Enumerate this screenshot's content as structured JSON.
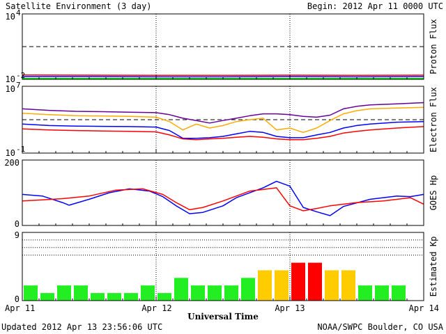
{
  "header": {
    "title": "Satellite Environment (3 day)",
    "begin": "Begin:  2012 Apr 11 0000 UTC"
  },
  "footer": {
    "updated": "Updated 2012 Apr 13 23:56:06 UTC",
    "source": "NOAA/SWPC Boulder, CO USA"
  },
  "xaxis": {
    "title": "Universal Time",
    "ticks": [
      "Apr 11",
      "Apr 12",
      "Apr 13",
      "Apr 14"
    ],
    "range_days": [
      0,
      3
    ]
  },
  "chart_data": [
    {
      "type": "line",
      "ylabel": "Proton Flux",
      "yscale": "log",
      "ylim": [
        0.01,
        10000
      ],
      "ytick_labels": [
        {
          "base": "10",
          "exp": "4"
        },
        {
          "base": "10",
          "exp": "-2"
        }
      ],
      "reference_line": 10,
      "series": [
        {
          "color": "#ff0000",
          "x": [
            0,
            0.5,
            1,
            1.5,
            2,
            2.5,
            3
          ],
          "y": [
            0.025,
            0.024,
            0.023,
            0.023,
            0.024,
            0.023,
            0.024
          ]
        },
        {
          "color": "#0000ff",
          "x": [
            0,
            0.5,
            1,
            1.5,
            2,
            2.5,
            3
          ],
          "y": [
            0.018,
            0.018,
            0.017,
            0.017,
            0.018,
            0.017,
            0.018
          ]
        },
        {
          "color": "#00dd00",
          "x": [
            0,
            0.5,
            1,
            1.5,
            2,
            2.5,
            3
          ],
          "y": [
            0.012,
            0.012,
            0.012,
            0.012,
            0.012,
            0.012,
            0.012
          ]
        }
      ]
    },
    {
      "type": "line",
      "ylabel": "Electron Flux",
      "yscale": "log",
      "ylim": [
        0.1,
        10000000
      ],
      "ytick_labels": [
        {
          "base": "10",
          "exp": "7"
        },
        {
          "base": "10",
          "exp": "-1"
        }
      ],
      "reference_line": 1000,
      "series": [
        {
          "color": "#660099",
          "x": [
            0,
            0.2,
            0.4,
            0.6,
            0.8,
            1.0,
            1.1,
            1.2,
            1.3,
            1.4,
            1.5,
            1.6,
            1.7,
            1.8,
            1.9,
            2.0,
            2.1,
            2.2,
            2.3,
            2.4,
            2.5,
            2.6,
            2.8,
            3.0
          ],
          "y": [
            20000,
            13000,
            10000,
            9000,
            8000,
            7000,
            4000,
            1500,
            800,
            400,
            800,
            1500,
            3000,
            5000,
            5000,
            4000,
            2500,
            2000,
            3500,
            20000,
            40000,
            60000,
            80000,
            110000
          ]
        },
        {
          "color": "#ffaa00",
          "x": [
            0,
            0.2,
            0.4,
            0.6,
            0.8,
            1.0,
            1.1,
            1.2,
            1.3,
            1.4,
            1.5,
            1.6,
            1.7,
            1.8,
            1.9,
            2.0,
            2.1,
            2.2,
            2.3,
            2.4,
            2.5,
            2.6,
            2.8,
            3.0
          ],
          "y": [
            6000,
            4000,
            3000,
            2800,
            2500,
            2000,
            600,
            60,
            300,
            100,
            200,
            600,
            1000,
            1500,
            60,
            100,
            30,
            100,
            800,
            5000,
            12000,
            20000,
            25000,
            30000
          ]
        },
        {
          "color": "#0000ff",
          "x": [
            0,
            0.2,
            0.4,
            0.6,
            0.8,
            1.0,
            1.1,
            1.2,
            1.3,
            1.4,
            1.5,
            1.6,
            1.7,
            1.8,
            1.9,
            2.0,
            2.1,
            2.2,
            2.3,
            2.4,
            2.5,
            2.6,
            2.8,
            3.0
          ],
          "y": [
            300,
            200,
            170,
            160,
            150,
            130,
            50,
            6,
            6,
            7,
            10,
            20,
            40,
            30,
            10,
            7,
            7,
            15,
            30,
            100,
            200,
            300,
            500,
            600
          ]
        },
        {
          "color": "#ff0000",
          "x": [
            0,
            0.2,
            0.4,
            0.6,
            0.8,
            1.0,
            1.1,
            1.2,
            1.3,
            1.4,
            1.5,
            1.6,
            1.7,
            1.8,
            1.9,
            2.0,
            2.1,
            2.2,
            2.3,
            2.4,
            2.5,
            2.6,
            2.8,
            3.0
          ],
          "y": [
            80,
            60,
            50,
            45,
            40,
            35,
            15,
            5,
            4,
            5,
            6,
            8,
            10,
            8,
            5,
            4,
            4,
            6,
            10,
            25,
            40,
            60,
            100,
            150
          ]
        }
      ]
    },
    {
      "type": "line",
      "ylabel": "GOES Hp",
      "yscale": "linear",
      "ylim": [
        0,
        200
      ],
      "ytick_labels": [
        "200",
        "0"
      ],
      "series": [
        {
          "color": "#0000ff",
          "x": [
            0,
            0.15,
            0.3,
            0.35,
            0.5,
            0.65,
            0.8,
            0.95,
            1.05,
            1.15,
            1.25,
            1.35,
            1.5,
            1.6,
            1.8,
            1.9,
            2.0,
            2.1,
            2.2,
            2.3,
            2.4,
            2.6,
            2.8,
            2.9,
            3.0
          ],
          "y": [
            95,
            90,
            70,
            62,
            80,
            100,
            112,
            105,
            88,
            60,
            36,
            40,
            60,
            85,
            115,
            135,
            120,
            55,
            42,
            30,
            58,
            80,
            90,
            88,
            95
          ]
        },
        {
          "color": "#ff0000",
          "x": [
            0,
            0.15,
            0.3,
            0.5,
            0.7,
            0.9,
            1.05,
            1.15,
            1.25,
            1.35,
            1.5,
            1.7,
            1.9,
            2.0,
            2.1,
            2.2,
            2.3,
            2.5,
            2.7,
            2.9,
            3.0
          ],
          "y": [
            75,
            78,
            82,
            90,
            108,
            112,
            95,
            70,
            48,
            55,
            75,
            105,
            115,
            60,
            45,
            52,
            60,
            70,
            75,
            85,
            65
          ]
        }
      ]
    },
    {
      "type": "bar",
      "ylabel": "Estimated Kp",
      "ylim": [
        0,
        9
      ],
      "ytick_labels": [
        "9",
        "0"
      ],
      "bar_hours": 3,
      "values": [
        2,
        1,
        2,
        2,
        1,
        1,
        1,
        2,
        1,
        3,
        2,
        2,
        2,
        3,
        4,
        4,
        5,
        5,
        4,
        4,
        2,
        2,
        2
      ],
      "colors": [
        "#22ee22",
        "#22ee22",
        "#22ee22",
        "#22ee22",
        "#22ee22",
        "#22ee22",
        "#22ee22",
        "#22ee22",
        "#22ee22",
        "#22ee22",
        "#22ee22",
        "#22ee22",
        "#22ee22",
        "#22ee22",
        "#ffcc00",
        "#ffcc00",
        "#ff0000",
        "#ff0000",
        "#ffcc00",
        "#ffcc00",
        "#22ee22",
        "#22ee22",
        "#22ee22"
      ]
    }
  ]
}
